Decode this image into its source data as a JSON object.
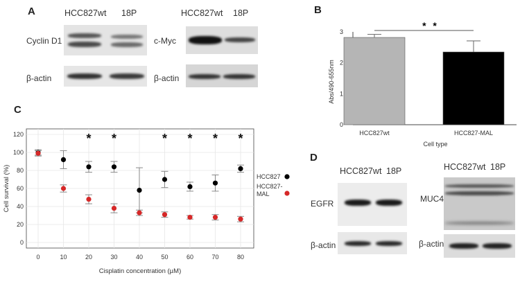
{
  "panels": {
    "A": {
      "letter": "A",
      "lanes_left": [
        "HCC827wt",
        "18P"
      ],
      "lanes_right": [
        "HCC827wt",
        "18P"
      ],
      "blots": {
        "cyclin": "Cyclin D1",
        "actin1": "β-actin",
        "myc": "c-Myc",
        "actin2": "β-actin"
      }
    },
    "B": {
      "letter": "B"
    },
    "C": {
      "letter": "C"
    },
    "D": {
      "letter": "D",
      "lanes_left": [
        "HCC827wt",
        "18P"
      ],
      "lanes_right": [
        "HCC827wt",
        "18P"
      ],
      "blots": {
        "egfr": "EGFR",
        "actin1": "β-actin",
        "muc4": "MUC4",
        "actin2": "β-actin"
      }
    }
  },
  "chart_data": [
    {
      "type": "bar",
      "panel": "B",
      "categories": [
        "HCC827wt",
        "HCC827-MAL"
      ],
      "values": [
        2.82,
        2.35
      ],
      "errors": [
        0.1,
        0.36
      ],
      "colors": [
        "#b5b5b5",
        "#000000"
      ],
      "xlabel": "Cell type",
      "ylabel": "Abs/490-655nm",
      "ylim": [
        0,
        3
      ],
      "yticks": [
        "0",
        "1",
        "2",
        "3"
      ],
      "significance": "* *"
    },
    {
      "type": "scatter",
      "panel": "C",
      "x": [
        0,
        10,
        20,
        30,
        40,
        50,
        60,
        70,
        80
      ],
      "xticks": [
        "0",
        "10",
        "20",
        "30",
        "40",
        "50",
        "60",
        "70",
        "80"
      ],
      "series": [
        {
          "name": "HCC827",
          "color": "#000000",
          "values": [
            100,
            92,
            84,
            84,
            58,
            70,
            62,
            66,
            82
          ],
          "errors": [
            3,
            10,
            6,
            6,
            25,
            9,
            5,
            9,
            4
          ]
        },
        {
          "name": "HCC827-MAL",
          "color": "#d62828",
          "values": [
            99,
            60,
            48,
            38,
            33,
            31,
            28,
            28,
            26
          ],
          "errors": [
            3,
            4,
            5,
            5,
            3,
            3,
            2,
            3,
            3
          ]
        }
      ],
      "legend_labels": [
        "HCC827",
        "HCC827-",
        "MAL"
      ],
      "significance_at": [
        20,
        30,
        50,
        60,
        70,
        80
      ],
      "significance_mark": "*",
      "xlabel": "Cisplatin concentration (µM)",
      "ylabel": "Cell survival (%)",
      "ylim": [
        0,
        120
      ],
      "yticks": [
        "0",
        "20",
        "40",
        "60",
        "80",
        "100",
        "120"
      ],
      "grid": true,
      "legend": "right"
    }
  ]
}
